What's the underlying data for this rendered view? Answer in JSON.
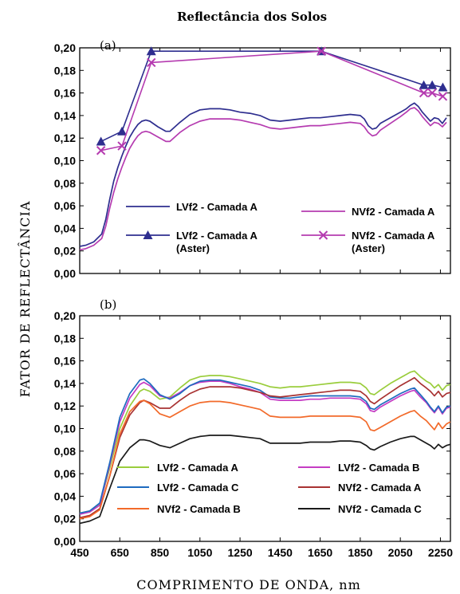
{
  "chart_data": [
    {
      "type": "line",
      "panel": "(a)",
      "title": "Reflectância dos Solos",
      "ylabel": "FATOR DE REFLECTÂNCIA",
      "xlim": [
        450,
        2300
      ],
      "ylim": [
        0,
        0.2
      ],
      "yticks": [
        "0,00",
        "0,02",
        "0,04",
        "0,06",
        "0,08",
        "0,10",
        "0,12",
        "0,14",
        "0,16",
        "0,18",
        "0,20"
      ],
      "grid": false,
      "legend": "center",
      "series": [
        {
          "name": "LVf2 - Camada A",
          "color": "#2e2e8f",
          "style": "line",
          "x": [
            450,
            480,
            520,
            560,
            580,
            600,
            620,
            640,
            660,
            680,
            700,
            720,
            740,
            760,
            780,
            800,
            840,
            880,
            900,
            950,
            1000,
            1050,
            1100,
            1150,
            1200,
            1250,
            1300,
            1350,
            1400,
            1450,
            1500,
            1550,
            1600,
            1650,
            1700,
            1750,
            1800,
            1850,
            1870,
            1890,
            1910,
            1930,
            1950,
            2000,
            2050,
            2080,
            2100,
            2120,
            2140,
            2160,
            2180,
            2200,
            2220,
            2240,
            2260,
            2280
          ],
          "y": [
            0.024,
            0.025,
            0.028,
            0.035,
            0.048,
            0.066,
            0.082,
            0.094,
            0.104,
            0.113,
            0.121,
            0.127,
            0.132,
            0.135,
            0.136,
            0.135,
            0.13,
            0.126,
            0.126,
            0.134,
            0.141,
            0.145,
            0.146,
            0.146,
            0.145,
            0.143,
            0.142,
            0.14,
            0.136,
            0.135,
            0.136,
            0.137,
            0.138,
            0.138,
            0.139,
            0.14,
            0.141,
            0.14,
            0.137,
            0.131,
            0.128,
            0.129,
            0.133,
            0.138,
            0.143,
            0.146,
            0.149,
            0.151,
            0.148,
            0.143,
            0.139,
            0.135,
            0.138,
            0.137,
            0.133,
            0.138
          ]
        },
        {
          "name": "NVf2 - Camada A",
          "color": "#b53bb0",
          "style": "line",
          "x": [
            450,
            480,
            520,
            560,
            580,
            600,
            620,
            640,
            660,
            680,
            700,
            720,
            740,
            760,
            780,
            800,
            840,
            880,
            900,
            950,
            1000,
            1050,
            1100,
            1150,
            1200,
            1250,
            1300,
            1350,
            1400,
            1450,
            1500,
            1550,
            1600,
            1650,
            1700,
            1750,
            1800,
            1850,
            1870,
            1890,
            1910,
            1930,
            1950,
            2000,
            2050,
            2080,
            2100,
            2120,
            2140,
            2160,
            2180,
            2200,
            2220,
            2240,
            2260,
            2280
          ],
          "y": [
            0.021,
            0.022,
            0.025,
            0.031,
            0.042,
            0.058,
            0.072,
            0.084,
            0.094,
            0.103,
            0.111,
            0.117,
            0.122,
            0.125,
            0.126,
            0.125,
            0.121,
            0.117,
            0.117,
            0.125,
            0.131,
            0.135,
            0.137,
            0.137,
            0.137,
            0.136,
            0.134,
            0.132,
            0.129,
            0.128,
            0.129,
            0.13,
            0.131,
            0.131,
            0.132,
            0.133,
            0.134,
            0.133,
            0.13,
            0.125,
            0.122,
            0.123,
            0.127,
            0.133,
            0.139,
            0.143,
            0.146,
            0.147,
            0.144,
            0.139,
            0.135,
            0.131,
            0.134,
            0.133,
            0.13,
            0.134
          ]
        },
        {
          "name": "LVf2 - Camada A\n(Aster)",
          "color": "#2e2e8f",
          "style": "line-marker",
          "marker": "triangle",
          "x": [
            556,
            661,
            807,
            1656,
            2167,
            2209,
            2262
          ],
          "y": [
            0.117,
            0.126,
            0.197,
            0.197,
            0.167,
            0.167,
            0.165
          ]
        },
        {
          "name": "NVf2 - Camada A\n(Aster)",
          "color": "#b53bb0",
          "style": "line-marker",
          "marker": "x",
          "x": [
            556,
            661,
            807,
            1656,
            2167,
            2209,
            2262
          ],
          "y": [
            0.109,
            0.113,
            0.187,
            0.197,
            0.16,
            0.16,
            0.157
          ]
        }
      ]
    },
    {
      "type": "line",
      "panel": "(b)",
      "xlabel": "COMPRIMENTO DE ONDA, nm",
      "ylabel": "FATOR DE REFLECTÂNCIA",
      "xlim": [
        450,
        2300
      ],
      "ylim": [
        0,
        0.2
      ],
      "xticks": [
        "450",
        "650",
        "850",
        "1050",
        "1250",
        "1450",
        "1650",
        "1850",
        "2050",
        "2250"
      ],
      "yticks": [
        "0,00",
        "0,02",
        "0,04",
        "0,06",
        "0,08",
        "0,10",
        "0,12",
        "0,14",
        "0,16",
        "0,18",
        "0,20"
      ],
      "grid": false,
      "legend": "bottom",
      "series": [
        {
          "name": "LVf2 - Camada A",
          "color": "#9acd3c",
          "x": [
            450,
            500,
            550,
            600,
            650,
            700,
            750,
            770,
            800,
            850,
            900,
            950,
            1000,
            1050,
            1100,
            1150,
            1200,
            1250,
            1300,
            1350,
            1400,
            1450,
            1500,
            1550,
            1600,
            1650,
            1700,
            1750,
            1800,
            1850,
            1880,
            1900,
            1920,
            1950,
            2000,
            2050,
            2100,
            2120,
            2150,
            2180,
            2200,
            2220,
            2240,
            2260,
            2280,
            2300
          ],
          "y": [
            0.025,
            0.027,
            0.033,
            0.065,
            0.1,
            0.12,
            0.133,
            0.135,
            0.133,
            0.126,
            0.128,
            0.136,
            0.143,
            0.146,
            0.147,
            0.147,
            0.146,
            0.144,
            0.142,
            0.14,
            0.137,
            0.136,
            0.137,
            0.137,
            0.138,
            0.139,
            0.14,
            0.141,
            0.141,
            0.14,
            0.136,
            0.131,
            0.13,
            0.134,
            0.14,
            0.145,
            0.15,
            0.151,
            0.146,
            0.142,
            0.14,
            0.136,
            0.139,
            0.134,
            0.138,
            0.139
          ]
        },
        {
          "name": "LVf2 - Camada B",
          "color": "#c53cc3",
          "x": [
            450,
            500,
            550,
            600,
            650,
            700,
            750,
            770,
            800,
            850,
            900,
            950,
            1000,
            1050,
            1100,
            1150,
            1200,
            1250,
            1300,
            1350,
            1400,
            1450,
            1500,
            1550,
            1600,
            1650,
            1700,
            1750,
            1800,
            1850,
            1880,
            1900,
            1920,
            1950,
            2000,
            2050,
            2100,
            2120,
            2150,
            2180,
            2200,
            2220,
            2240,
            2260,
            2280,
            2300
          ],
          "y": [
            0.024,
            0.026,
            0.032,
            0.068,
            0.106,
            0.127,
            0.139,
            0.141,
            0.138,
            0.129,
            0.127,
            0.132,
            0.138,
            0.141,
            0.142,
            0.142,
            0.14,
            0.137,
            0.135,
            0.132,
            0.126,
            0.125,
            0.125,
            0.125,
            0.126,
            0.126,
            0.127,
            0.127,
            0.127,
            0.126,
            0.122,
            0.116,
            0.115,
            0.119,
            0.124,
            0.129,
            0.133,
            0.134,
            0.128,
            0.123,
            0.118,
            0.114,
            0.119,
            0.113,
            0.118,
            0.119
          ]
        },
        {
          "name": "LVf2 - Camada C",
          "color": "#1e6bbf",
          "x": [
            450,
            500,
            550,
            600,
            650,
            700,
            750,
            770,
            800,
            850,
            900,
            950,
            1000,
            1050,
            1100,
            1150,
            1200,
            1250,
            1300,
            1350,
            1400,
            1450,
            1500,
            1550,
            1600,
            1650,
            1700,
            1750,
            1800,
            1850,
            1880,
            1900,
            1920,
            1950,
            2000,
            2050,
            2100,
            2120,
            2150,
            2180,
            2200,
            2220,
            2240,
            2260,
            2280,
            2300
          ],
          "y": [
            0.025,
            0.027,
            0.034,
            0.07,
            0.11,
            0.131,
            0.143,
            0.144,
            0.14,
            0.13,
            0.126,
            0.131,
            0.138,
            0.142,
            0.143,
            0.143,
            0.141,
            0.139,
            0.137,
            0.134,
            0.128,
            0.127,
            0.127,
            0.128,
            0.129,
            0.129,
            0.129,
            0.129,
            0.129,
            0.128,
            0.124,
            0.118,
            0.117,
            0.121,
            0.126,
            0.131,
            0.135,
            0.136,
            0.13,
            0.124,
            0.119,
            0.115,
            0.12,
            0.114,
            0.119,
            0.12
          ]
        },
        {
          "name": "NVf2 - Camada A",
          "color": "#a83232",
          "x": [
            450,
            500,
            550,
            600,
            650,
            700,
            750,
            770,
            800,
            850,
            900,
            950,
            1000,
            1050,
            1100,
            1150,
            1200,
            1250,
            1300,
            1350,
            1400,
            1450,
            1500,
            1550,
            1600,
            1650,
            1700,
            1750,
            1800,
            1850,
            1880,
            1900,
            1920,
            1950,
            2000,
            2050,
            2100,
            2120,
            2150,
            2180,
            2200,
            2220,
            2240,
            2260,
            2280,
            2300
          ],
          "y": [
            0.021,
            0.023,
            0.029,
            0.058,
            0.092,
            0.112,
            0.123,
            0.125,
            0.123,
            0.118,
            0.118,
            0.125,
            0.131,
            0.135,
            0.137,
            0.137,
            0.137,
            0.136,
            0.134,
            0.132,
            0.129,
            0.128,
            0.129,
            0.13,
            0.131,
            0.132,
            0.133,
            0.134,
            0.134,
            0.133,
            0.129,
            0.124,
            0.122,
            0.126,
            0.132,
            0.138,
            0.143,
            0.145,
            0.14,
            0.136,
            0.133,
            0.129,
            0.133,
            0.128,
            0.131,
            0.132
          ]
        },
        {
          "name": "NVf2 - Camada B",
          "color": "#f26a2a",
          "x": [
            450,
            500,
            550,
            600,
            650,
            700,
            750,
            770,
            800,
            850,
            900,
            950,
            1000,
            1050,
            1100,
            1150,
            1200,
            1250,
            1300,
            1350,
            1400,
            1450,
            1500,
            1550,
            1600,
            1650,
            1700,
            1750,
            1800,
            1850,
            1880,
            1900,
            1920,
            1950,
            2000,
            2050,
            2100,
            2120,
            2150,
            2180,
            2200,
            2220,
            2240,
            2260,
            2280,
            2300
          ],
          "y": [
            0.02,
            0.022,
            0.028,
            0.058,
            0.095,
            0.115,
            0.124,
            0.125,
            0.122,
            0.113,
            0.11,
            0.115,
            0.12,
            0.123,
            0.124,
            0.124,
            0.123,
            0.121,
            0.119,
            0.117,
            0.111,
            0.11,
            0.11,
            0.11,
            0.111,
            0.111,
            0.111,
            0.111,
            0.111,
            0.11,
            0.106,
            0.099,
            0.098,
            0.101,
            0.106,
            0.111,
            0.115,
            0.116,
            0.111,
            0.107,
            0.103,
            0.099,
            0.105,
            0.1,
            0.104,
            0.106
          ]
        },
        {
          "name": "NVf2 - Camada C",
          "color": "#1a1a1a",
          "x": [
            450,
            500,
            550,
            600,
            650,
            700,
            750,
            770,
            800,
            850,
            900,
            950,
            1000,
            1050,
            1100,
            1150,
            1200,
            1250,
            1300,
            1350,
            1400,
            1450,
            1500,
            1550,
            1600,
            1650,
            1700,
            1750,
            1800,
            1850,
            1880,
            1900,
            1920,
            1950,
            2000,
            2050,
            2100,
            2120,
            2150,
            2180,
            2200,
            2220,
            2240,
            2260,
            2280,
            2300
          ],
          "y": [
            0.016,
            0.018,
            0.022,
            0.047,
            0.071,
            0.083,
            0.09,
            0.09,
            0.089,
            0.085,
            0.083,
            0.087,
            0.091,
            0.093,
            0.094,
            0.094,
            0.094,
            0.093,
            0.092,
            0.091,
            0.087,
            0.087,
            0.087,
            0.087,
            0.088,
            0.088,
            0.088,
            0.089,
            0.089,
            0.088,
            0.085,
            0.082,
            0.081,
            0.084,
            0.088,
            0.091,
            0.093,
            0.093,
            0.09,
            0.087,
            0.085,
            0.082,
            0.086,
            0.083,
            0.085,
            0.086
          ]
        }
      ]
    }
  ]
}
